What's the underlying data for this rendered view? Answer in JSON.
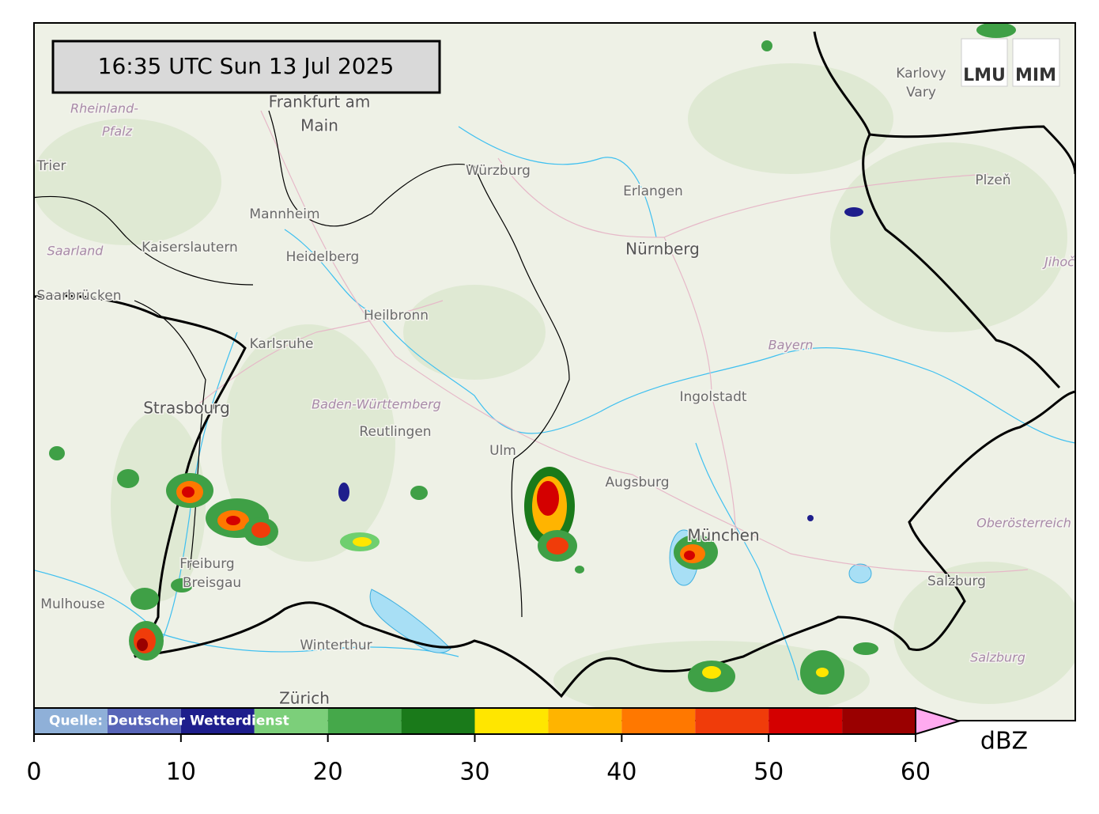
{
  "timestamp": "16:35 UTC  Sun 13 Jul 2025",
  "logos": [
    "LMU",
    "MIM"
  ],
  "places": [
    "Frankfurt am",
    "Main",
    "Rheinland-",
    "Pfalz",
    "Trier",
    "Würzburg",
    "Erlangen",
    "Nürnberg",
    "Karlovy",
    "Vary",
    "Plzeň",
    "Mannheim",
    "Kaiserslautern",
    "Heidelberg",
    "Saarland",
    "Saarbrücken",
    "Heilbronn",
    "Karlsruhe",
    "Bayern",
    "Ingolstadt",
    "Strasbourg",
    "Baden-Württemberg",
    "Reutlingen",
    "Ulm",
    "Augsburg",
    "München",
    "Oberösterreich",
    "Freiburg",
    "Breisgau",
    "Mulhouse",
    "Salzburg",
    "Salzburg",
    "Winterthur",
    "Zürich",
    "Jihoč"
  ],
  "colorbar": {
    "bounds": [
      0,
      5,
      10,
      15,
      20,
      25,
      30,
      35,
      40,
      45,
      50,
      55,
      60
    ],
    "colors": [
      "#8fb0d8",
      "#5865b8",
      "#1e1e8c",
      "#7ccf7a",
      "#45a84a",
      "#1a7a1a",
      "#ffe600",
      "#ffb400",
      "#ff7800",
      "#f03c0a",
      "#d40000",
      "#9a0000"
    ],
    "extend_color": "#ffaaf0",
    "ticks": [
      0,
      10,
      20,
      30,
      40,
      50,
      60
    ],
    "unit": "dBZ",
    "source": "Quelle: Deutscher Wetterdienst"
  }
}
